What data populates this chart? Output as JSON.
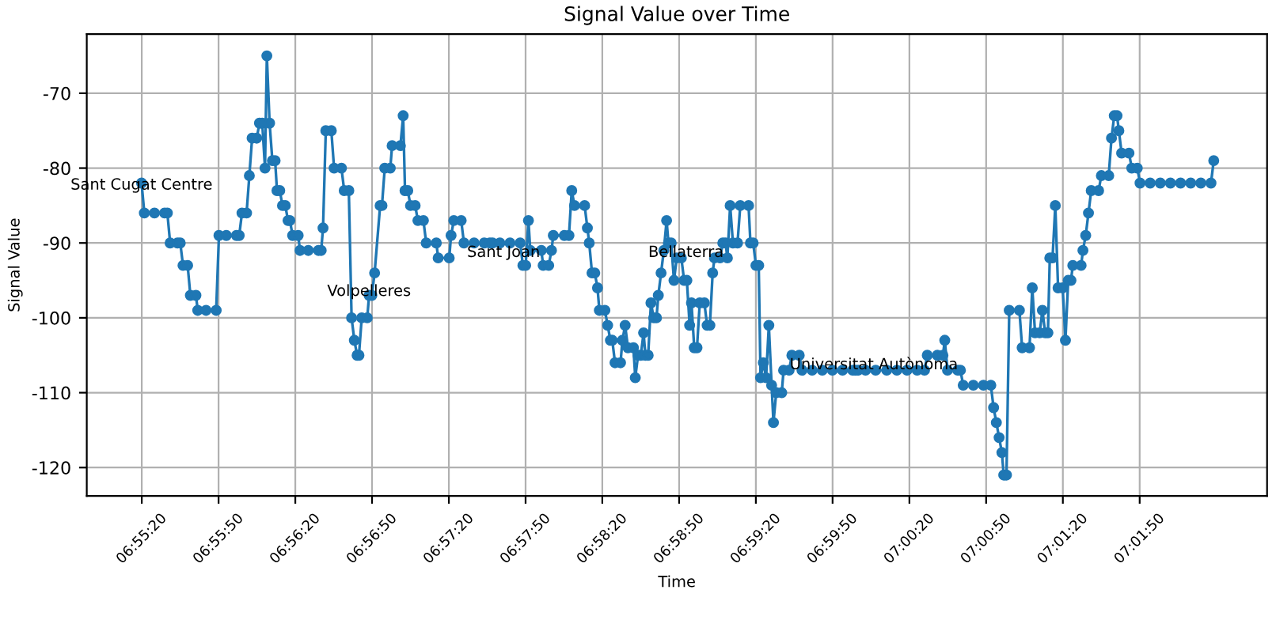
{
  "chart_data": {
    "type": "line",
    "title": "Signal Value over Time",
    "xlabel": "Time",
    "ylabel": "Signal Value",
    "series": [
      {
        "color": "#1f77b4",
        "x": [
          6.9222,
          6.9225,
          6.9236,
          6.9247,
          6.925,
          6.9253,
          6.9261,
          6.9264,
          6.9267,
          6.9272,
          6.9275,
          6.9281,
          6.9283,
          6.9292,
          6.9303,
          6.9306,
          6.9314,
          6.9325,
          6.9328,
          6.9331,
          6.9336,
          6.9339,
          6.9342,
          6.9347,
          6.935,
          6.9353,
          6.9356,
          6.9358,
          6.9361,
          6.9364,
          6.9367,
          6.9369,
          6.9372,
          6.9375,
          6.9378,
          6.9381,
          6.9383,
          6.9386,
          6.9392,
          6.9394,
          6.9403,
          6.9414,
          6.9417,
          6.9419,
          6.9422,
          6.9428,
          6.9431,
          6.9439,
          6.9442,
          6.9447,
          6.945,
          6.9453,
          6.9456,
          6.9458,
          6.9461,
          6.9467,
          6.9469,
          6.9472,
          6.9475,
          6.9481,
          6.9483,
          6.9486,
          6.9492,
          6.9494,
          6.9503,
          6.9506,
          6.9508,
          6.9511,
          6.9514,
          6.9519,
          6.9522,
          6.9528,
          6.9531,
          6.9542,
          6.9544,
          6.9556,
          6.9558,
          6.9561,
          6.9569,
          6.9572,
          6.9583,
          6.9594,
          6.96,
          6.9603,
          6.9611,
          6.9622,
          6.9633,
          6.9636,
          6.9639,
          6.9642,
          6.9644,
          6.9656,
          6.9658,
          6.9664,
          6.9667,
          6.9669,
          6.9681,
          6.9686,
          6.9689,
          6.9692,
          6.9703,
          6.9706,
          6.9708,
          6.9711,
          6.9714,
          6.9717,
          6.9719,
          6.9725,
          6.9728,
          6.9731,
          6.9733,
          6.9736,
          6.9742,
          6.9744,
          6.9747,
          6.975,
          6.9756,
          6.9758,
          6.9761,
          6.9764,
          6.9767,
          6.9769,
          6.9772,
          6.9775,
          6.9778,
          6.9781,
          6.9783,
          6.9786,
          6.9789,
          6.9792,
          6.9794,
          6.9797,
          6.98,
          6.9803,
          6.9808,
          6.9811,
          6.9814,
          6.9817,
          6.9819,
          6.9822,
          6.9825,
          6.9828,
          6.9833,
          6.9836,
          6.9839,
          6.9842,
          6.9844,
          6.985,
          6.9853,
          6.9856,
          6.9858,
          6.9861,
          6.9864,
          6.9869,
          6.9872,
          6.9881,
          6.9883,
          6.9886,
          6.9889,
          6.9892,
          6.9894,
          6.9897,
          6.99,
          6.9903,
          6.9906,
          6.9908,
          6.9911,
          6.9917,
          6.9919,
          6.9925,
          6.9928,
          6.9936,
          6.9939,
          6.995,
          6.9961,
          6.9972,
          6.9983,
          6.9994,
          6.9997,
          7.0,
          7.0008,
          7.0019,
          7.0031,
          7.0042,
          7.0053,
          7.0064,
          7.0072,
          7.0075,
          7.0086,
          7.0092,
          7.0094,
          7.0097,
          7.0108,
          7.0111,
          7.0114,
          7.0125,
          7.0136,
          7.0144,
          7.0147,
          7.015,
          7.0153,
          7.0156,
          7.0158,
          7.0161,
          7.0164,
          7.0175,
          7.0178,
          7.0186,
          7.0189,
          7.0192,
          7.0197,
          7.02,
          7.0203,
          7.0206,
          7.0208,
          7.0211,
          7.0214,
          7.0217,
          7.0222,
          7.0225,
          7.0228,
          7.0231,
          7.0233,
          7.0242,
          7.0244,
          7.0247,
          7.025,
          7.0253,
          7.0261,
          7.0264,
          7.0272,
          7.0275,
          7.0278,
          7.0281,
          7.0283,
          7.0286,
          7.0294,
          7.0297,
          7.0303,
          7.0306,
          7.0317,
          7.0328,
          7.0339,
          7.035,
          7.0361,
          7.0372,
          7.0383,
          7.0386
        ],
        "values": [
          -82,
          -86,
          -86,
          -86,
          -86,
          -90,
          -90,
          -90,
          -93,
          -93,
          -97,
          -97,
          -99,
          -99,
          -99,
          -89,
          -89,
          -89,
          -89,
          -86,
          -86,
          -81,
          -76,
          -76,
          -74,
          -74,
          -80,
          -65,
          -74,
          -79,
          -79,
          -83,
          -83,
          -85,
          -85,
          -87,
          -87,
          -89,
          -89,
          -91,
          -91,
          -91,
          -91,
          -88,
          -75,
          -75,
          -80,
          -80,
          -83,
          -83,
          -100,
          -103,
          -105,
          -105,
          -100,
          -100,
          -97,
          -97,
          -94,
          -85,
          -85,
          -80,
          -80,
          -77,
          -77,
          -73,
          -83,
          -83,
          -85,
          -85,
          -87,
          -87,
          -90,
          -90,
          -92,
          -92,
          -89,
          -87,
          -87,
          -90,
          -90,
          -90,
          -90,
          -90,
          -90,
          -90,
          -90,
          -93,
          -93,
          -87,
          -91,
          -91,
          -93,
          -93,
          -91,
          -89,
          -89,
          -89,
          -83,
          -85,
          -85,
          -88,
          -90,
          -94,
          -94,
          -96,
          -99,
          -99,
          -101,
          -103,
          -103,
          -106,
          -106,
          -103,
          -101,
          -104,
          -104,
          -108,
          -105,
          -105,
          -102,
          -105,
          -105,
          -98,
          -100,
          -100,
          -97,
          -94,
          -91,
          -87,
          -90,
          -90,
          -95,
          -92,
          -92,
          -95,
          -95,
          -101,
          -98,
          -104,
          -104,
          -98,
          -98,
          -101,
          -101,
          -94,
          -92,
          -92,
          -90,
          -90,
          -92,
          -85,
          -90,
          -90,
          -85,
          -85,
          -90,
          -90,
          -93,
          -93,
          -108,
          -106,
          -108,
          -101,
          -109,
          -114,
          -110,
          -110,
          -107,
          -107,
          -105,
          -105,
          -107,
          -107,
          -107,
          -107,
          -107,
          -107,
          -107,
          -107,
          -107,
          -107,
          -107,
          -107,
          -107,
          -107,
          -107,
          -105,
          -105,
          -105,
          -103,
          -107,
          -107,
          -107,
          -109,
          -109,
          -109,
          -109,
          -112,
          -114,
          -116,
          -118,
          -121,
          -121,
          -99,
          -99,
          -104,
          -104,
          -96,
          -102,
          -102,
          -99,
          -102,
          -102,
          -92,
          -92,
          -85,
          -96,
          -96,
          -103,
          -95,
          -95,
          -93,
          -93,
          -91,
          -89,
          -86,
          -83,
          -83,
          -81,
          -81,
          -76,
          -73,
          -73,
          -75,
          -78,
          -78,
          -80,
          -80,
          -82,
          -82,
          -82,
          -82,
          -82,
          -82,
          -82,
          -82,
          -79
        ]
      }
    ],
    "annotations": [
      {
        "text": "Sant Cugat Centre",
        "x": 6.9222,
        "y": -82.3
      },
      {
        "text": "Volpelleres",
        "x": 6.9469,
        "y": -96.5
      },
      {
        "text": "Sant Joan",
        "x": 6.9615,
        "y": -91.3
      },
      {
        "text": "Bellaterra",
        "x": 6.9813,
        "y": -91.3
      },
      {
        "text": "Universitat Autònoma",
        "x": 7.0017,
        "y": -106.3
      }
    ],
    "xlim": [
      6.91625,
      7.04439
    ],
    "ylim": [
      -123.8,
      -62.1
    ],
    "xticks": [
      {
        "value": 6.92222,
        "label": "06:55:20"
      },
      {
        "value": 6.93056,
        "label": "06:55:50"
      },
      {
        "value": 6.93889,
        "label": "06:56:20"
      },
      {
        "value": 6.94722,
        "label": "06:56:50"
      },
      {
        "value": 6.95556,
        "label": "06:57:20"
      },
      {
        "value": 6.96389,
        "label": "06:57:50"
      },
      {
        "value": 6.97222,
        "label": "06:58:20"
      },
      {
        "value": 6.98056,
        "label": "06:58:50"
      },
      {
        "value": 6.98889,
        "label": "06:59:20"
      },
      {
        "value": 6.99722,
        "label": "06:59:50"
      },
      {
        "value": 7.00556,
        "label": "07:00:20"
      },
      {
        "value": 7.01389,
        "label": "07:00:50"
      },
      {
        "value": 7.02222,
        "label": "07:01:20"
      },
      {
        "value": 7.03056,
        "label": "07:01:50"
      }
    ],
    "yticks": [
      -120,
      -110,
      -100,
      -90,
      -80,
      -70
    ],
    "grid": true,
    "marker": "circle",
    "line_style": "solid"
  }
}
